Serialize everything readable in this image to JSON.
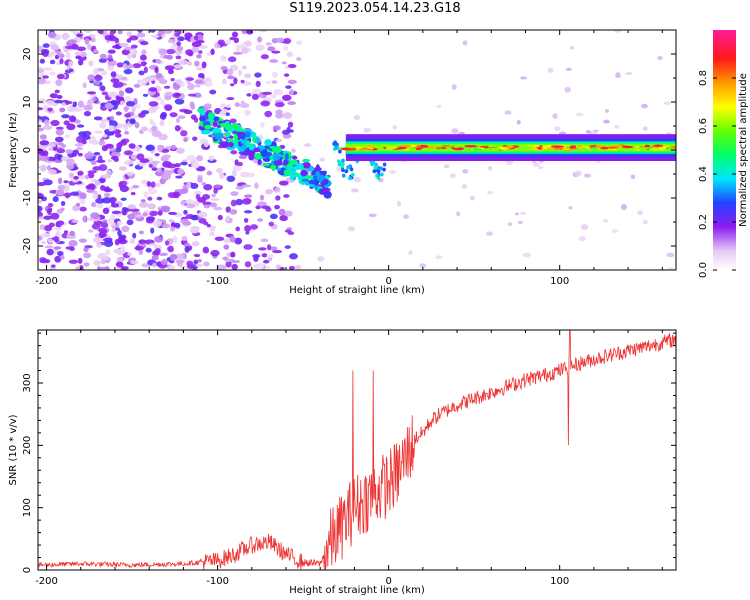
{
  "title": "S119.2023.054.14.23.G18",
  "chart_data": [
    {
      "type": "heatmap",
      "name": "spectrogram",
      "xlabel": "Height of straight line (km)",
      "ylabel": "Frequency (Hz)",
      "xlim": [
        -205,
        168
      ],
      "ylim": [
        -25,
        25
      ],
      "xticks": [
        -200,
        -100,
        0,
        100
      ],
      "yticks": [
        -20,
        -10,
        0,
        10,
        20
      ],
      "colorbar": {
        "label": "Normalized spectral amplitude",
        "range": [
          0,
          1
        ],
        "ticks": [
          0.0,
          0.2,
          0.4,
          0.6,
          0.8
        ],
        "palette": "white-purple-blue-cyan-green-yellow-orange-red-magenta"
      },
      "features": [
        {
          "name": "noise",
          "x_range": [
            -205,
            -55
          ],
          "freq_range": [
            -25,
            25
          ],
          "amplitude": 0.25
        },
        {
          "name": "descending-track",
          "x_range": [
            -110,
            -35
          ],
          "freq_start": 6,
          "freq_end": -7,
          "amplitude": 0.45
        },
        {
          "name": "main-tone",
          "x_range": [
            -25,
            168
          ],
          "freq": 0.5,
          "amplitude": 0.8
        }
      ]
    },
    {
      "type": "line",
      "name": "snr",
      "xlabel": "Height of straight line (km)",
      "ylabel": "SNR (10 * v/v)",
      "xlim": [
        -205,
        168
      ],
      "ylim": [
        0,
        385
      ],
      "xticks": [
        -200,
        -100,
        0,
        100
      ],
      "yticks": [
        0,
        100,
        200,
        300
      ],
      "color": "#ee3333",
      "x": [
        -205,
        -180,
        -150,
        -120,
        -100,
        -90,
        -80,
        -70,
        -60,
        -50,
        -40,
        -35,
        -30,
        -25,
        -20,
        -15,
        -10,
        -5,
        0,
        5,
        10,
        15,
        20,
        25,
        30,
        40,
        50,
        60,
        70,
        80,
        90,
        100,
        110,
        120,
        130,
        140,
        150,
        160,
        168
      ],
      "values": [
        8,
        10,
        8,
        10,
        15,
        25,
        40,
        45,
        25,
        12,
        10,
        40,
        60,
        80,
        100,
        110,
        120,
        130,
        140,
        155,
        180,
        210,
        220,
        240,
        250,
        265,
        275,
        285,
        295,
        305,
        312,
        320,
        330,
        338,
        345,
        352,
        358,
        365,
        370
      ],
      "spikes": [
        {
          "x": -21,
          "value": 320
        },
        {
          "x": -9,
          "value": 320
        },
        {
          "x": 105,
          "value": 200
        },
        {
          "x": 106,
          "value": 385
        }
      ]
    }
  ]
}
